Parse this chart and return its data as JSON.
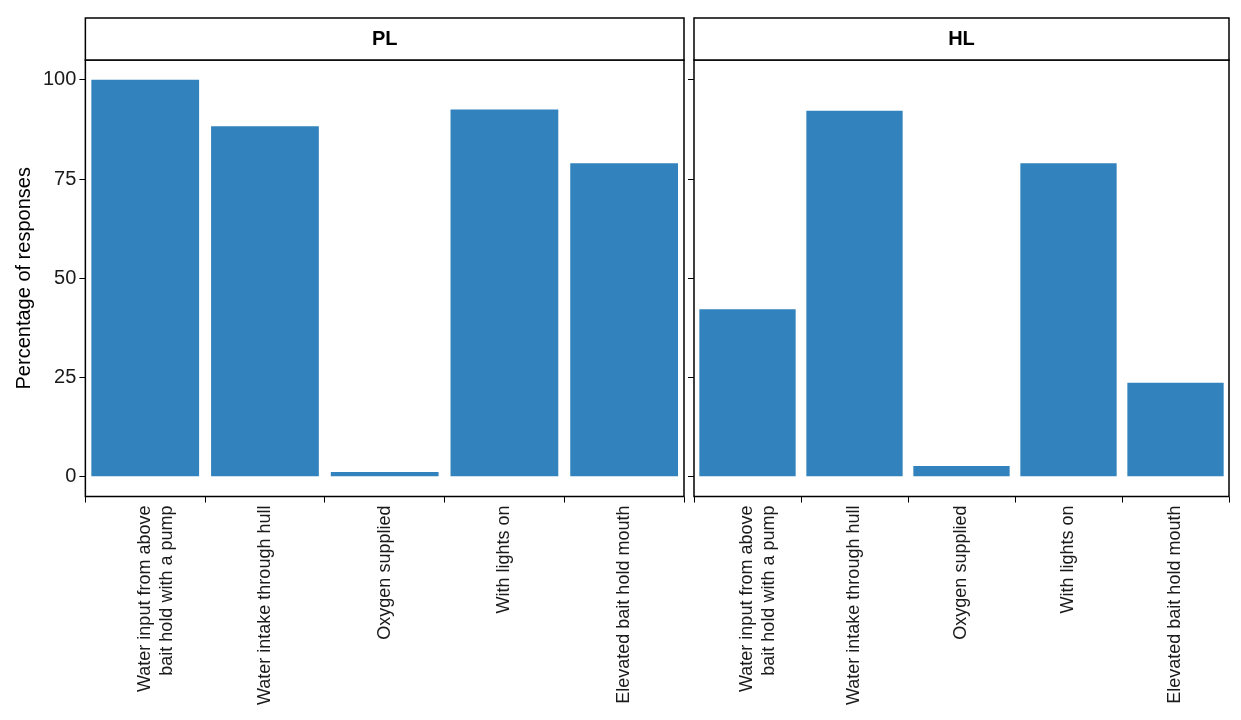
{
  "chart_data": [
    {
      "type": "bar",
      "title": "PL",
      "ylabel": "Percentage of responses",
      "categories": [
        "Water input from above\nbait hold with a pump",
        "Water intake through hull",
        "Oxygen supplied",
        "With lights on",
        "Elevated bait hold mouth"
      ],
      "values": [
        100,
        88.3,
        1.2,
        92.5,
        79
      ],
      "color": "#3182bd",
      "ylim": [
        -5,
        105
      ],
      "yticks": [
        0,
        25,
        50,
        75,
        100
      ],
      "grid": false
    },
    {
      "type": "bar",
      "title": "HL",
      "categories": [
        "Water input from above\nbait hold with a pump",
        "Water intake through hull",
        "Oxygen supplied",
        "With lights on",
        "Elevated bait hold mouth"
      ],
      "values": [
        42.2,
        92.2,
        2.7,
        79,
        23.7
      ],
      "color": "#3182bd",
      "ylim": [
        -5,
        105
      ],
      "yticks": [
        0,
        25,
        50,
        75,
        100
      ],
      "grid": false,
      "tick_labels": "x"
    }
  ]
}
